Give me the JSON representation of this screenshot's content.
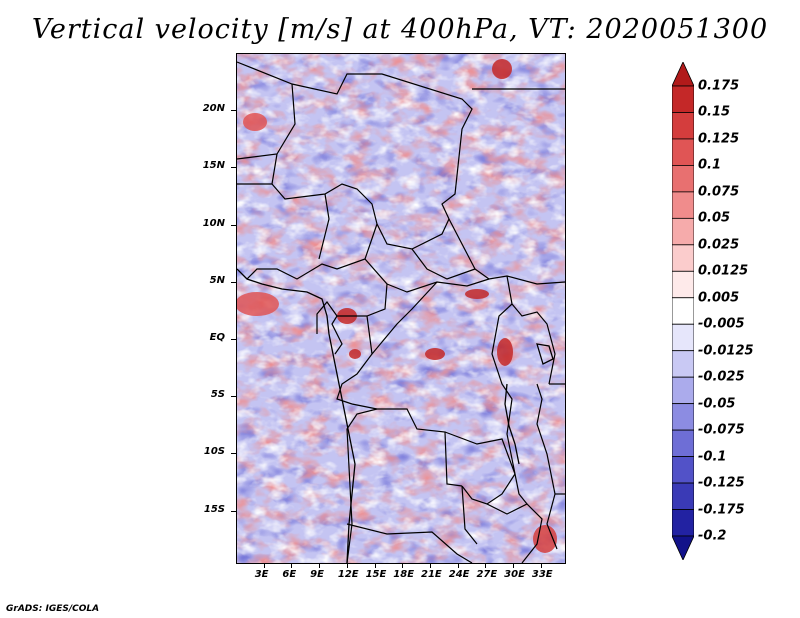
{
  "title": "Vertical velocity [m/s] at 400hPa, VT: 2020051300",
  "credit": "GrADS: IGES/COLA",
  "map": {
    "lat_range": [
      -19.5,
      25
    ],
    "lon_range": [
      0,
      35.5
    ],
    "lat_labels": [
      "20N",
      "15N",
      "10N",
      "5N",
      "EQ",
      "5S",
      "10S",
      "15S"
    ],
    "lat_values": [
      20,
      15,
      10,
      5,
      0,
      -5,
      -10,
      -15
    ],
    "lon_labels": [
      "3E",
      "6E",
      "9E",
      "12E",
      "15E",
      "18E",
      "21E",
      "24E",
      "27E",
      "30E",
      "33E"
    ],
    "lon_values": [
      3,
      6,
      9,
      12,
      15,
      18,
      21,
      24,
      27,
      30,
      33
    ]
  },
  "colorbar": {
    "labels": [
      "0.175",
      "0.15",
      "0.125",
      "0.1",
      "0.075",
      "0.05",
      "0.025",
      "0.0125",
      "0.005",
      "-0.005",
      "-0.0125",
      "-0.025",
      "-0.05",
      "-0.075",
      "-0.1",
      "-0.125",
      "-0.175",
      "-0.2"
    ],
    "colors": [
      "#b11a1a",
      "#c42828",
      "#d43d3d",
      "#e05555",
      "#e87070",
      "#f08c8c",
      "#f6abab",
      "#fbcccc",
      "#feeaea",
      "#ffffff",
      "#e6e6fb",
      "#c9c9f4",
      "#ababec",
      "#8c8ce2",
      "#6e6ed6",
      "#5252c8",
      "#3a3ab6",
      "#2222a2",
      "#12128a"
    ]
  }
}
